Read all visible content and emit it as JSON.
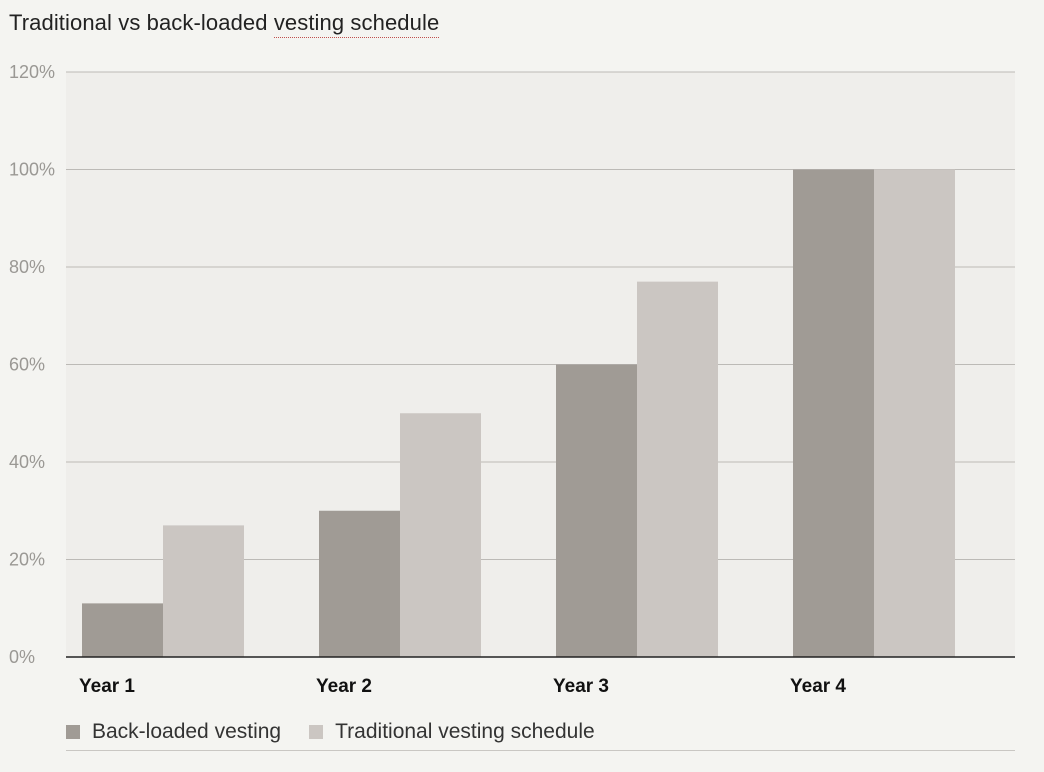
{
  "title_prefix": "Traditional vs back-loaded ",
  "title_highlight": "vesting schedule",
  "chart_data": {
    "type": "bar",
    "categories": [
      "Year 1",
      "Year 2",
      "Year 3",
      "Year 4"
    ],
    "series": [
      {
        "name": "Back-loaded vesting",
        "values": [
          11,
          30,
          60,
          100
        ],
        "color": "#a09b95"
      },
      {
        "name": "Traditional vesting schedule",
        "values": [
          27,
          50,
          77,
          100
        ],
        "color": "#cbc6c2"
      }
    ],
    "ylim": [
      0,
      120
    ],
    "yticks": [
      0,
      20,
      40,
      60,
      80,
      100,
      120
    ],
    "ytick_labels": [
      "0%",
      "20%",
      "40%",
      "60%",
      "80%",
      "100%",
      "120%"
    ],
    "grid": true,
    "legend_position": "bottom"
  }
}
